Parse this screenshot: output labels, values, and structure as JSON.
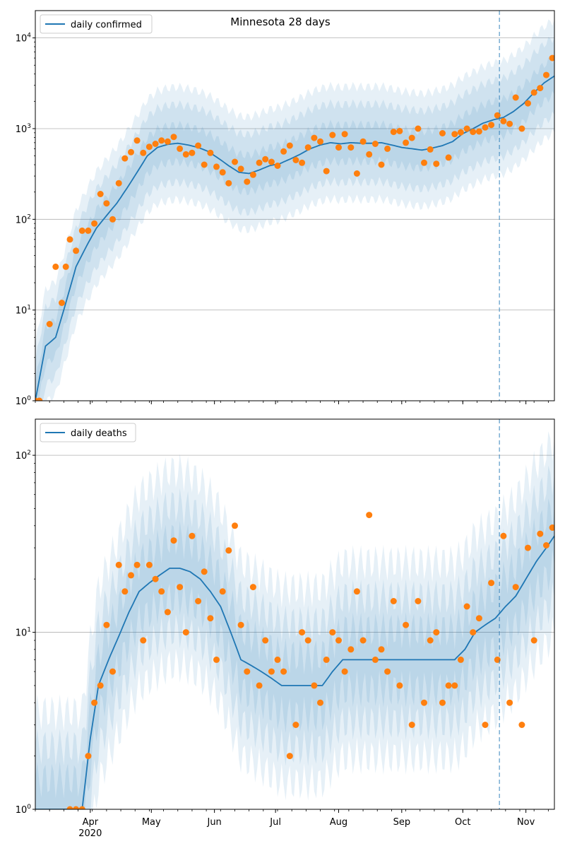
{
  "figure": {
    "title": "Minnesota 28 days",
    "colors": {
      "line": "#1f77b4",
      "points": "#ff7f0e",
      "band": "#1f77b4",
      "grid": "#b0b0b0",
      "vline": "#1f77b4"
    }
  },
  "chart_data": [
    {
      "type": "line",
      "title": "Minnesota 28 days",
      "xlabel": "",
      "ylabel": "",
      "yscale": "log",
      "ylim": [
        1,
        20000
      ],
      "xlim": [
        "2020-03-05",
        "2020-11-15"
      ],
      "y_ticks": [
        1,
        10,
        100,
        1000,
        10000
      ],
      "y_tick_labels": [
        "10^0",
        "10^1",
        "10^2",
        "10^3",
        "10^4"
      ],
      "grid": "horizontal",
      "legend_position": "top-left",
      "vline_date": "2020-10-19",
      "series": [
        {
          "name": "daily confirmed",
          "x": [
            "2020-03-05",
            "2020-03-10",
            "2020-03-15",
            "2020-03-20",
            "2020-03-25",
            "2020-03-30",
            "2020-04-04",
            "2020-04-09",
            "2020-04-14",
            "2020-04-19",
            "2020-04-24",
            "2020-04-29",
            "2020-05-04",
            "2020-05-09",
            "2020-05-14",
            "2020-05-19",
            "2020-05-24",
            "2020-05-29",
            "2020-06-03",
            "2020-06-08",
            "2020-06-13",
            "2020-06-18",
            "2020-06-23",
            "2020-06-28",
            "2020-07-03",
            "2020-07-08",
            "2020-07-13",
            "2020-07-18",
            "2020-07-23",
            "2020-07-28",
            "2020-08-02",
            "2020-08-07",
            "2020-08-12",
            "2020-08-17",
            "2020-08-22",
            "2020-08-27",
            "2020-09-01",
            "2020-09-06",
            "2020-09-11",
            "2020-09-16",
            "2020-09-21",
            "2020-09-26",
            "2020-10-01",
            "2020-10-06",
            "2020-10-11",
            "2020-10-16",
            "2020-10-21",
            "2020-10-26",
            "2020-10-31",
            "2020-11-05",
            "2020-11-10",
            "2020-11-15"
          ],
          "y": [
            1,
            4,
            5,
            12,
            30,
            50,
            80,
            110,
            150,
            220,
            330,
            500,
            620,
            670,
            690,
            660,
            620,
            560,
            470,
            390,
            330,
            320,
            350,
            390,
            410,
            460,
            520,
            600,
            660,
            700,
            680,
            700,
            690,
            690,
            700,
            660,
            620,
            600,
            580,
            610,
            650,
            720,
            880,
            1000,
            1150,
            1250,
            1330,
            1550,
            1900,
            2500,
            3200,
            3800
          ]
        },
        {
          "name": "",
          "type": "scatter",
          "x": [
            "2020-03-05",
            "2020-03-07",
            "2020-03-12",
            "2020-03-15",
            "2020-03-18",
            "2020-03-20",
            "2020-03-22",
            "2020-03-25",
            "2020-03-28",
            "2020-03-31",
            "2020-04-03",
            "2020-04-06",
            "2020-04-09",
            "2020-04-12",
            "2020-04-15",
            "2020-04-18",
            "2020-04-21",
            "2020-04-24",
            "2020-04-27",
            "2020-04-30",
            "2020-05-03",
            "2020-05-06",
            "2020-05-09",
            "2020-05-12",
            "2020-05-15",
            "2020-05-18",
            "2020-05-21",
            "2020-05-24",
            "2020-05-27",
            "2020-05-30",
            "2020-06-02",
            "2020-06-05",
            "2020-06-08",
            "2020-06-11",
            "2020-06-14",
            "2020-06-17",
            "2020-06-20",
            "2020-06-23",
            "2020-06-26",
            "2020-06-29",
            "2020-07-02",
            "2020-07-05",
            "2020-07-08",
            "2020-07-11",
            "2020-07-14",
            "2020-07-17",
            "2020-07-20",
            "2020-07-23",
            "2020-07-26",
            "2020-07-29",
            "2020-08-01",
            "2020-08-04",
            "2020-08-07",
            "2020-08-10",
            "2020-08-13",
            "2020-08-16",
            "2020-08-19",
            "2020-08-22",
            "2020-08-25",
            "2020-08-28",
            "2020-08-31",
            "2020-09-03",
            "2020-09-06",
            "2020-09-09",
            "2020-09-12",
            "2020-09-15",
            "2020-09-18",
            "2020-09-21",
            "2020-09-24",
            "2020-09-27",
            "2020-09-30",
            "2020-10-03",
            "2020-10-06",
            "2020-10-09",
            "2020-10-12",
            "2020-10-15",
            "2020-10-18",
            "2020-10-21",
            "2020-10-24",
            "2020-10-27",
            "2020-10-30",
            "2020-11-02",
            "2020-11-05",
            "2020-11-08",
            "2020-11-11",
            "2020-11-14"
          ],
          "y": [
            1,
            1,
            7,
            30,
            12,
            30,
            60,
            45,
            75,
            75,
            90,
            190,
            150,
            100,
            250,
            470,
            550,
            740,
            540,
            630,
            680,
            740,
            720,
            810,
            600,
            520,
            540,
            650,
            400,
            540,
            380,
            330,
            250,
            430,
            360,
            260,
            310,
            420,
            460,
            430,
            390,
            560,
            650,
            450,
            420,
            620,
            790,
            720,
            340,
            850,
            620,
            870,
            620,
            320,
            720,
            520,
            680,
            400,
            600,
            920,
            940,
            700,
            790,
            1000,
            420,
            590,
            410,
            890,
            480,
            870,
            910,
            1000,
            920,
            930,
            1030,
            1100,
            1400,
            1210,
            1130,
            2200,
            1000,
            1900,
            2500,
            2800,
            3900,
            6000
          ]
        }
      ]
    },
    {
      "type": "line",
      "title": "",
      "xlabel": "",
      "ylabel": "",
      "yscale": "log",
      "ylim": [
        1,
        160
      ],
      "xlim": [
        "2020-03-05",
        "2020-11-15"
      ],
      "y_ticks": [
        1,
        10,
        100
      ],
      "y_tick_labels": [
        "10^0",
        "10^1",
        "10^2"
      ],
      "x_ticks": [
        "2020-04-01",
        "2020-05-01",
        "2020-06-01",
        "2020-07-01",
        "2020-08-01",
        "2020-09-01",
        "2020-10-01",
        "2020-11-01"
      ],
      "x_tick_labels": [
        "Apr",
        "May",
        "Jun",
        "Jul",
        "Aug",
        "Sep",
        "Oct",
        "Nov"
      ],
      "x_year_label": "2020",
      "grid": "horizontal",
      "legend_position": "top-left",
      "vline_date": "2020-10-19",
      "series": [
        {
          "name": "daily deaths",
          "x": [
            "2020-03-05",
            "2020-03-20",
            "2020-03-25",
            "2020-03-28",
            "2020-04-01",
            "2020-04-05",
            "2020-04-10",
            "2020-04-15",
            "2020-04-20",
            "2020-04-25",
            "2020-04-30",
            "2020-05-05",
            "2020-05-10",
            "2020-05-15",
            "2020-05-20",
            "2020-05-25",
            "2020-05-30",
            "2020-06-04",
            "2020-06-09",
            "2020-06-14",
            "2020-06-19",
            "2020-06-24",
            "2020-06-29",
            "2020-07-04",
            "2020-07-09",
            "2020-07-14",
            "2020-07-19",
            "2020-07-24",
            "2020-07-29",
            "2020-08-03",
            "2020-08-08",
            "2020-08-13",
            "2020-08-18",
            "2020-08-23",
            "2020-08-28",
            "2020-09-02",
            "2020-09-07",
            "2020-09-12",
            "2020-09-17",
            "2020-09-22",
            "2020-09-27",
            "2020-10-02",
            "2020-10-07",
            "2020-10-12",
            "2020-10-17",
            "2020-10-22",
            "2020-10-27",
            "2020-11-01",
            "2020-11-06",
            "2020-11-11",
            "2020-11-15"
          ],
          "y": [
            1,
            1,
            1,
            1,
            2.5,
            5,
            7,
            9.5,
            13,
            17,
            19,
            21,
            23,
            23,
            22,
            20,
            17,
            14,
            10,
            7,
            6.5,
            6,
            5.5,
            5,
            5,
            5,
            5,
            5,
            6,
            7,
            7,
            7,
            7,
            7,
            7,
            7,
            7,
            7,
            7,
            7,
            7,
            8,
            10,
            11,
            12,
            14,
            16,
            20,
            25,
            30,
            35
          ]
        },
        {
          "name": "",
          "type": "scatter",
          "x": [
            "2020-03-22",
            "2020-03-25",
            "2020-03-28",
            "2020-03-31",
            "2020-04-03",
            "2020-04-06",
            "2020-04-09",
            "2020-04-12",
            "2020-04-15",
            "2020-04-18",
            "2020-04-21",
            "2020-04-24",
            "2020-04-27",
            "2020-04-30",
            "2020-05-03",
            "2020-05-06",
            "2020-05-09",
            "2020-05-12",
            "2020-05-15",
            "2020-05-18",
            "2020-05-21",
            "2020-05-24",
            "2020-05-27",
            "2020-05-30",
            "2020-06-02",
            "2020-06-05",
            "2020-06-08",
            "2020-06-11",
            "2020-06-14",
            "2020-06-17",
            "2020-06-20",
            "2020-06-23",
            "2020-06-26",
            "2020-06-29",
            "2020-07-02",
            "2020-07-05",
            "2020-07-08",
            "2020-07-11",
            "2020-07-14",
            "2020-07-17",
            "2020-07-20",
            "2020-07-23",
            "2020-07-26",
            "2020-07-29",
            "2020-08-01",
            "2020-08-04",
            "2020-08-07",
            "2020-08-10",
            "2020-08-13",
            "2020-08-16",
            "2020-08-19",
            "2020-08-22",
            "2020-08-25",
            "2020-08-28",
            "2020-08-31",
            "2020-09-03",
            "2020-09-06",
            "2020-09-09",
            "2020-09-12",
            "2020-09-15",
            "2020-09-18",
            "2020-09-21",
            "2020-09-24",
            "2020-09-27",
            "2020-09-30",
            "2020-10-03",
            "2020-10-06",
            "2020-10-09",
            "2020-10-12",
            "2020-10-15",
            "2020-10-18",
            "2020-10-21",
            "2020-10-24",
            "2020-10-27",
            "2020-10-30",
            "2020-11-02",
            "2020-11-05",
            "2020-11-08",
            "2020-11-11",
            "2020-11-14"
          ],
          "y": [
            1,
            1,
            1,
            2,
            4,
            5,
            11,
            6,
            24,
            17,
            21,
            24,
            9,
            24,
            20,
            17,
            13,
            33,
            18,
            10,
            35,
            15,
            22,
            12,
            7,
            17,
            29,
            40,
            11,
            6,
            18,
            5,
            9,
            6,
            7,
            6,
            2,
            3,
            10,
            9,
            5,
            4,
            7,
            10,
            9,
            6,
            8,
            17,
            9,
            46,
            7,
            8,
            6,
            15,
            5,
            11,
            3,
            15,
            4,
            9,
            10,
            4,
            5,
            5,
            7,
            14,
            10,
            12,
            3,
            19,
            7,
            35,
            4,
            18,
            3,
            30,
            9,
            36,
            31,
            39
          ]
        }
      ]
    }
  ],
  "legends": {
    "top": "daily confirmed",
    "bottom": "daily deaths"
  }
}
